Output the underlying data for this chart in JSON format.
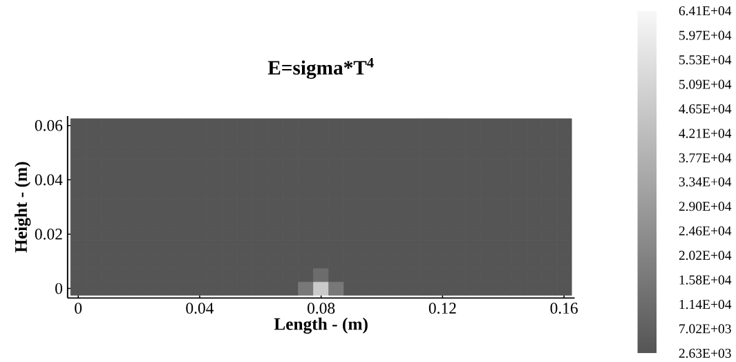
{
  "chart_data": {
    "type": "heatmap",
    "title": "**E=sigma*T$^{4}$**",
    "xlabel": "Length - (m)",
    "ylabel": "Height - (m)",
    "categories": [
      "0",
      null,
      null,
      null,
      null,
      null,
      null,
      null,
      "0.04",
      null,
      null,
      null,
      null,
      null,
      null,
      null,
      "0.08",
      null,
      null,
      null,
      null,
      null,
      null,
      null,
      "0.12",
      null,
      null,
      null,
      null,
      null,
      null,
      null,
      "0.16"
    ],
    "y_categories": [
      "0.06",
      null,
      null,
      null,
      "0.04",
      null,
      null,
      null,
      "0.02",
      null,
      null,
      null,
      "0"
    ],
    "cells": [
      [
        2630,
        2630,
        2630,
        2630,
        2630,
        2630,
        2630,
        2630,
        2630,
        2630,
        2630,
        2630,
        2630,
        2630,
        2630,
        2630,
        2630,
        2630,
        2630,
        2630,
        2630,
        2630,
        2630,
        2630,
        2630,
        2630,
        2630,
        2630,
        2630,
        2630,
        2630,
        2630,
        2630
      ],
      [
        2630,
        2630,
        2630,
        2630,
        2630,
        2630,
        2630,
        2630,
        2630,
        2630,
        2630,
        2630,
        2630,
        2630,
        2630,
        2630,
        2630,
        2630,
        2630,
        2630,
        2630,
        2630,
        2630,
        2630,
        2630,
        2630,
        2630,
        2630,
        2630,
        2630,
        2630,
        2630,
        2630
      ],
      [
        2630,
        2630,
        2630,
        2630,
        2630,
        2630,
        2630,
        2630,
        2630,
        2630,
        2630,
        2630,
        2630,
        2630,
        2630,
        2630,
        2630,
        2630,
        2630,
        2630,
        2630,
        2630,
        2630,
        2630,
        2630,
        2630,
        2630,
        2630,
        2630,
        2630,
        2630,
        2630,
        2630
      ],
      [
        2630,
        2630,
        2630,
        2630,
        2630,
        2630,
        2630,
        2630,
        2630,
        2630,
        2630,
        2630,
        2630,
        2630,
        2630,
        2630,
        2630,
        2630,
        2630,
        2630,
        2630,
        2630,
        2630,
        2630,
        2630,
        2630,
        2630,
        2630,
        2630,
        2630,
        2630,
        2630,
        2630
      ],
      [
        2630,
        2630,
        2630,
        2630,
        2630,
        2630,
        2630,
        2630,
        2630,
        2630,
        2630,
        2630,
        2630,
        2630,
        2630,
        2630,
        2630,
        2630,
        2630,
        2630,
        2630,
        2630,
        2630,
        2630,
        2630,
        2630,
        2630,
        2630,
        2630,
        2630,
        2630,
        2630,
        2630
      ],
      [
        2630,
        2630,
        2630,
        2630,
        2630,
        2630,
        2630,
        2630,
        2630,
        2630,
        2630,
        2630,
        2630,
        2630,
        2630,
        2630,
        2630,
        2630,
        2630,
        2630,
        2630,
        2630,
        2630,
        2630,
        2630,
        2630,
        2630,
        2630,
        2630,
        2630,
        2630,
        2630,
        2630
      ],
      [
        2630,
        2630,
        2630,
        2630,
        2630,
        2630,
        2630,
        2630,
        2630,
        2630,
        2630,
        2630,
        2630,
        2630,
        2630,
        2630,
        2630,
        2630,
        2630,
        2630,
        2630,
        2630,
        2630,
        2630,
        2630,
        2630,
        2630,
        2630,
        2630,
        2630,
        2630,
        2630,
        2630
      ],
      [
        2630,
        2630,
        2630,
        2630,
        2630,
        2630,
        2630,
        2630,
        2630,
        2630,
        2630,
        2630,
        2630,
        2630,
        2630,
        2630,
        2630,
        2630,
        2630,
        2630,
        2630,
        2630,
        2630,
        2630,
        2630,
        2630,
        2630,
        2630,
        2630,
        2630,
        2630,
        2630,
        2630
      ],
      [
        2630,
        2630,
        2630,
        2630,
        2630,
        2630,
        2630,
        2630,
        2630,
        2630,
        2630,
        2630,
        2630,
        2630,
        2630,
        2630,
        2630,
        2630,
        2630,
        2630,
        2630,
        2630,
        2630,
        2630,
        2630,
        2630,
        2630,
        2630,
        2630,
        2630,
        2630,
        2630,
        2630
      ],
      [
        2630,
        2630,
        2630,
        2630,
        2630,
        2630,
        2630,
        2630,
        2630,
        2630,
        2630,
        2630,
        2630,
        2630,
        2630,
        2630,
        2630,
        2630,
        2630,
        2630,
        2630,
        2630,
        2630,
        2630,
        2630,
        2630,
        2630,
        2630,
        2630,
        2630,
        2630,
        2630,
        2630
      ],
      [
        2630,
        2630,
        2630,
        2630,
        2630,
        2630,
        2630,
        2630,
        2630,
        2630,
        2630,
        2630,
        2630,
        2630,
        2630,
        2630,
        2630,
        2630,
        2630,
        2630,
        2630,
        2630,
        2630,
        2630,
        2630,
        2630,
        2630,
        2630,
        2630,
        2630,
        2630,
        2630,
        2630
      ],
      [
        2630,
        2630,
        2630,
        2630,
        2630,
        2630,
        2630,
        2630,
        2630,
        2630,
        2630,
        2630,
        2630,
        2630,
        2630,
        2630,
        11400,
        2630,
        2630,
        2630,
        2630,
        2630,
        2630,
        2630,
        2630,
        2630,
        2630,
        2630,
        2630,
        2630,
        2630,
        2630,
        2630
      ],
      [
        2630,
        2630,
        2630,
        2630,
        2630,
        2630,
        2630,
        2630,
        2630,
        2630,
        2630,
        2630,
        2630,
        2630,
        2630,
        15800,
        46500,
        15800,
        2630,
        2630,
        2630,
        2630,
        2630,
        2630,
        2630,
        2630,
        2630,
        2630,
        2630,
        2630,
        2630,
        2630,
        2630
      ]
    ],
    "clim": [
      2630,
      64100
    ],
    "cticks": [
      {
        "value": 2630,
        "label": "2.63E+03"
      },
      {
        "value": 7020,
        "label": "7.02E+03"
      },
      {
        "value": 11400,
        "label": "1.14E+04"
      },
      {
        "value": 15800,
        "label": "1.58E+04"
      },
      {
        "value": 20200,
        "label": "2.02E+04"
      },
      {
        "value": 24600,
        "label": "2.46E+04"
      },
      {
        "value": 29000,
        "label": "2.90E+04"
      },
      {
        "value": 33400,
        "label": "3.34E+04"
      },
      {
        "value": 37700,
        "label": "3.77E+04"
      },
      {
        "value": 42100,
        "label": "4.21E+04"
      },
      {
        "value": 46500,
        "label": "4.65E+04"
      },
      {
        "value": 50900,
        "label": "5.09E+04"
      },
      {
        "value": 55300,
        "label": "5.53E+04"
      },
      {
        "value": 59700,
        "label": "5.97E+04"
      },
      {
        "value": 64100,
        "label": "6.41E+04"
      }
    ]
  }
}
